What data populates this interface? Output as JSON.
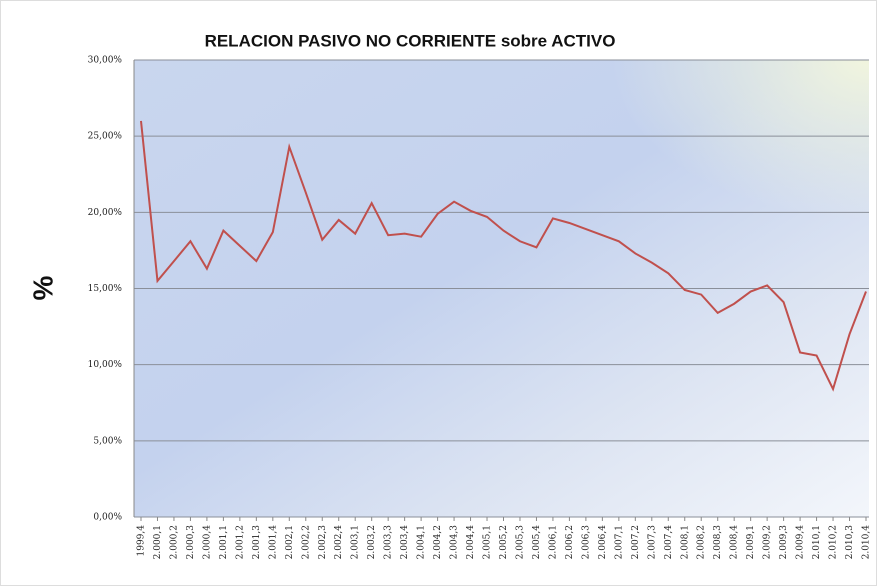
{
  "chart_data": {
    "type": "line",
    "title": "RELACION PASIVO NO CORRIENTE sobre ACTIVO",
    "y_label": "%",
    "categories": [
      "1999,4",
      "2.000,1",
      "2.000,2",
      "2.000,3",
      "2.000,4",
      "2.001,1",
      "2.001,2",
      "2.001,3",
      "2.001,4",
      "2.002,1",
      "2.002,2",
      "2.002,3",
      "2.002,4",
      "2.003,1",
      "2.003,2",
      "2.003,3",
      "2.003,4",
      "2.004,1",
      "2.004,2",
      "2.004,3",
      "2.004,4",
      "2.005,1",
      "2.005,2",
      "2.005,3",
      "2.005,4",
      "2.006,1",
      "2.006,2",
      "2.006,3",
      "2.006,4",
      "2.007,1",
      "2.007,2",
      "2.007,3",
      "2.007,4",
      "2.008,1",
      "2.008,2",
      "2.008,3",
      "2.008,4",
      "2.009,1",
      "2.009,2",
      "2.009,3",
      "2.009,4",
      "2.010,1",
      "2.010,2",
      "2.010,3",
      "2.010,4"
    ],
    "values": [
      26.0,
      15.5,
      16.8,
      18.1,
      16.3,
      18.8,
      17.8,
      16.8,
      18.7,
      24.3,
      21.3,
      18.2,
      19.5,
      18.6,
      20.6,
      18.5,
      18.6,
      18.4,
      19.9,
      20.7,
      20.1,
      19.7,
      18.8,
      18.1,
      17.7,
      19.6,
      19.3,
      18.9,
      18.5,
      18.1,
      17.3,
      16.7,
      16.0,
      14.9,
      14.6,
      13.4,
      14.0,
      14.8,
      15.2,
      14.1,
      10.8,
      10.6,
      8.4,
      12.0,
      14.8
    ],
    "color": "#c0504d",
    "ylim": [
      0,
      30
    ],
    "yticks": [
      {
        "value": 0,
        "label": "0,00%"
      },
      {
        "value": 5,
        "label": "5,00%"
      },
      {
        "value": 10,
        "label": "10,00%"
      },
      {
        "value": 15,
        "label": "15,00%"
      },
      {
        "value": 20,
        "label": "20,00%"
      },
      {
        "value": 25,
        "label": "25,00%"
      },
      {
        "value": 30,
        "label": "30,00%"
      }
    ],
    "grid": true
  }
}
